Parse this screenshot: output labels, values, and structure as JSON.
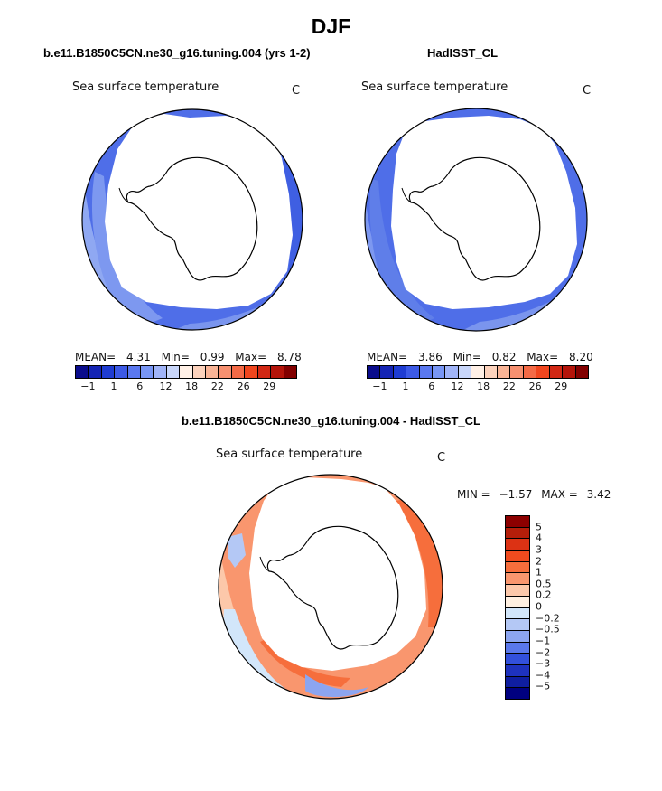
{
  "figure_title": "DJF",
  "chart_data": [
    {
      "type": "polar_contour_map",
      "title": "b.e11.B1850C5CN.ne30_g16.tuning.004 (yrs 1-2)",
      "field": "Sea surface temperature",
      "units": "C",
      "stats": {
        "mean_label": "MEAN=",
        "mean": "4.31",
        "min_label": "Min=",
        "min": "0.99",
        "max_label": "Max=",
        "max": "8.78"
      },
      "colorbar_ticks": [
        "−1",
        "1",
        "6",
        "12",
        "18",
        "22",
        "26",
        "29"
      ],
      "colorbar_colors": [
        "#0a0c8c",
        "#1424b4",
        "#1e3cd2",
        "#3c5ae6",
        "#5a78f0",
        "#7896f5",
        "#a0b4f8",
        "#c8d6fa",
        "#fff0e6",
        "#fcd2bc",
        "#f9b496",
        "#f69070",
        "#f46a46",
        "#f0461e",
        "#d22814",
        "#b4140a",
        "#820000"
      ]
    },
    {
      "type": "polar_contour_map",
      "title": "HadISST_CL",
      "field": "Sea surface temperature",
      "units": "C",
      "stats": {
        "mean_label": "MEAN=",
        "mean": "3.86",
        "min_label": "Min=",
        "min": "0.82",
        "max_label": "Max=",
        "max": "8.20"
      },
      "colorbar_ticks": [
        "−1",
        "1",
        "6",
        "12",
        "18",
        "22",
        "26",
        "29"
      ],
      "colorbar_colors": [
        "#0a0c8c",
        "#1424b4",
        "#1e3cd2",
        "#3c5ae6",
        "#5a78f0",
        "#7896f5",
        "#a0b4f8",
        "#c8d6fa",
        "#fff0e6",
        "#fcd2bc",
        "#f9b496",
        "#f69070",
        "#f46a46",
        "#f0461e",
        "#d22814",
        "#b4140a",
        "#820000"
      ]
    },
    {
      "type": "polar_contour_map",
      "title": "b.e11.B1850C5CN.ne30_g16.tuning.004 - HadISST_CL",
      "field": "Sea surface temperature",
      "units": "C",
      "stats": {
        "min_label": "MIN =",
        "min": "−1.57",
        "max_label": "MAX =",
        "max": "3.42"
      },
      "colorbar_ticks": [
        "5",
        "4",
        "3",
        "2",
        "1",
        "0.5",
        "0.2",
        "0",
        "−0.2",
        "−0.5",
        "−1",
        "−2",
        "−3",
        "−4",
        "−5"
      ],
      "colorbar_colors": [
        "#8c0000",
        "#b41e0a",
        "#dc3214",
        "#f04b1e",
        "#f66e3c",
        "#f9966e",
        "#fcc8aa",
        "#fff0e1",
        "#d2e6fa",
        "#b4c8f5",
        "#8ca5f0",
        "#5a78eb",
        "#3250dc",
        "#1e32be",
        "#0f1ea0",
        "#000080"
      ]
    }
  ]
}
